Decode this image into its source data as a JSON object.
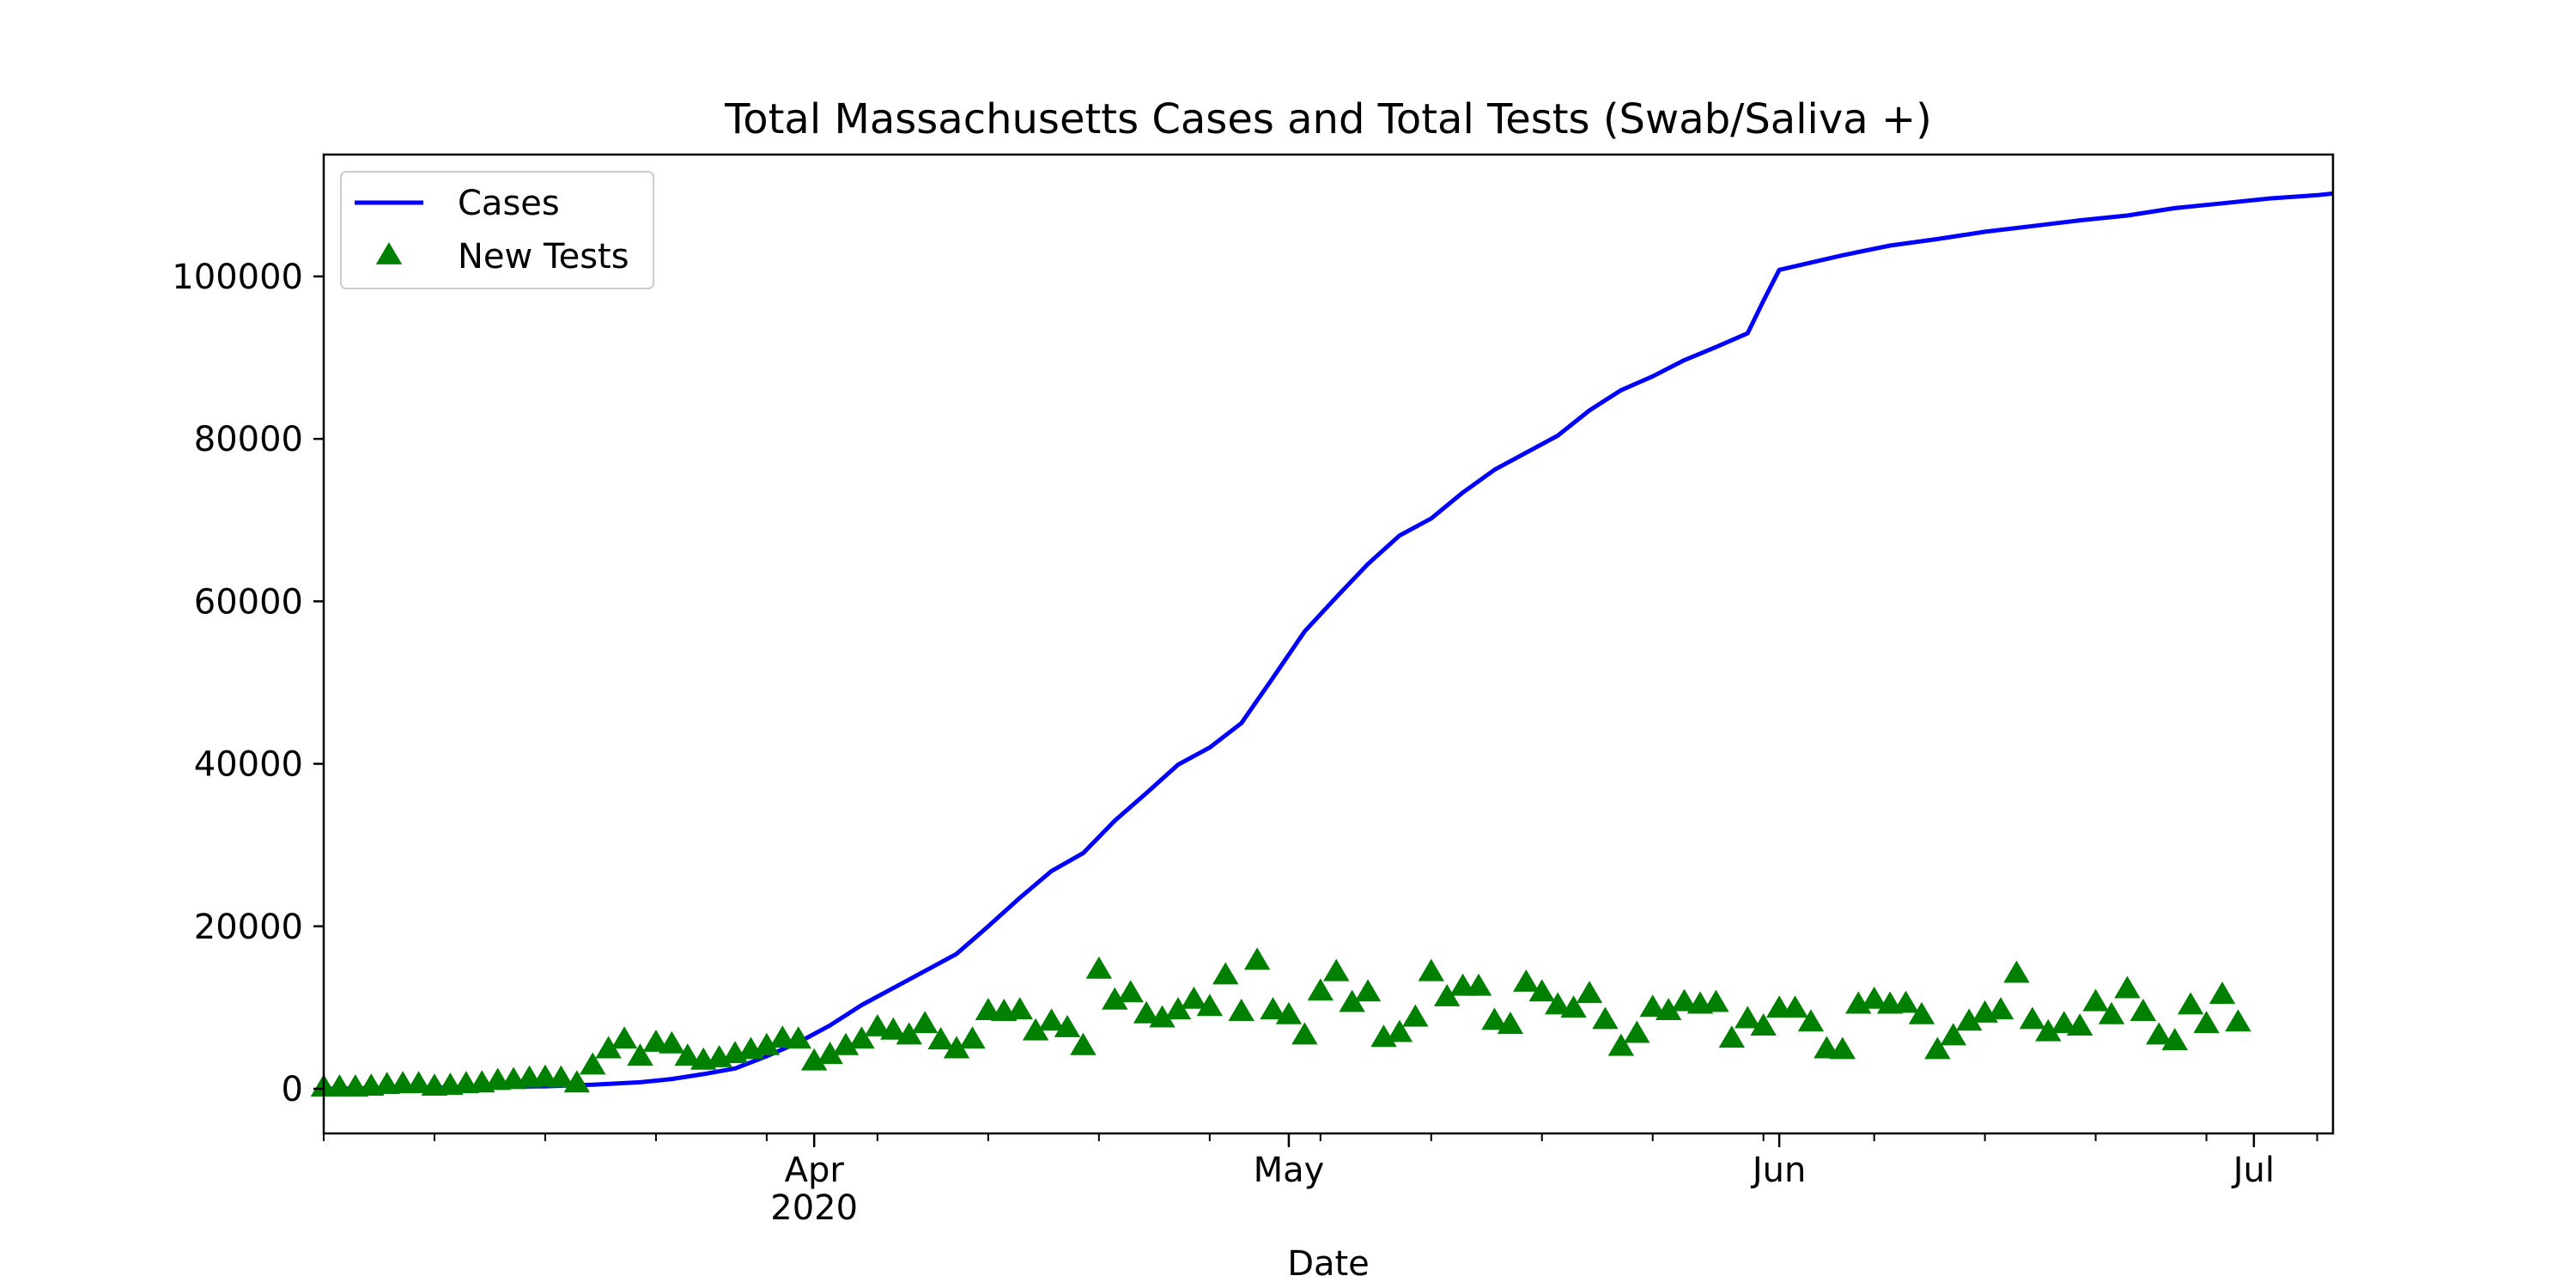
{
  "chart_data": {
    "type": "line",
    "title": "Total Massachusetts Cases and Total Tests (Swab/Saliva +)",
    "xlabel": "Date",
    "ylabel": "",
    "x_range": [
      "2020-03-01",
      "2020-07-06"
    ],
    "ylim": [
      -5500,
      115000
    ],
    "y_ticks": [
      0,
      20000,
      40000,
      60000,
      80000,
      100000
    ],
    "x_ticks": [
      {
        "date": "2020-04-01",
        "label": "Apr",
        "sublabel": "2020"
      },
      {
        "date": "2020-05-01",
        "label": "May",
        "sublabel": ""
      },
      {
        "date": "2020-06-01",
        "label": "Jun",
        "sublabel": ""
      },
      {
        "date": "2020-07-01",
        "label": "Jul",
        "sublabel": ""
      }
    ],
    "grid": false,
    "legend": {
      "position": "top-left",
      "entries": [
        "Cases",
        "New Tests"
      ]
    },
    "series": [
      {
        "name": "Cases",
        "kind": "line",
        "color": "#0000ff",
        "points": [
          [
            "2020-03-01",
            0
          ],
          [
            "2020-03-05",
            100
          ],
          [
            "2020-03-10",
            200
          ],
          [
            "2020-03-15",
            300
          ],
          [
            "2020-03-18",
            500
          ],
          [
            "2020-03-21",
            800
          ],
          [
            "2020-03-23",
            1200
          ],
          [
            "2020-03-25",
            1800
          ],
          [
            "2020-03-27",
            2500
          ],
          [
            "2020-03-29",
            4000
          ],
          [
            "2020-03-31",
            5700
          ],
          [
            "2020-04-02",
            7800
          ],
          [
            "2020-04-04",
            10300
          ],
          [
            "2020-04-06",
            12400
          ],
          [
            "2020-04-08",
            14500
          ],
          [
            "2020-04-10",
            16600
          ],
          [
            "2020-04-12",
            20000
          ],
          [
            "2020-04-14",
            23500
          ],
          [
            "2020-04-16",
            26800
          ],
          [
            "2020-04-18",
            29000
          ],
          [
            "2020-04-20",
            33000
          ],
          [
            "2020-04-22",
            36400
          ],
          [
            "2020-04-24",
            39900
          ],
          [
            "2020-04-26",
            42000
          ],
          [
            "2020-04-28",
            45000
          ],
          [
            "2020-04-30",
            50600
          ],
          [
            "2020-05-02",
            56300
          ],
          [
            "2020-05-04",
            60500
          ],
          [
            "2020-05-06",
            64600
          ],
          [
            "2020-05-08",
            68100
          ],
          [
            "2020-05-10",
            70200
          ],
          [
            "2020-05-12",
            73400
          ],
          [
            "2020-05-14",
            76200
          ],
          [
            "2020-05-16",
            78300
          ],
          [
            "2020-05-18",
            80400
          ],
          [
            "2020-05-20",
            83500
          ],
          [
            "2020-05-22",
            86000
          ],
          [
            "2020-05-24",
            87700
          ],
          [
            "2020-05-26",
            89700
          ],
          [
            "2020-05-28",
            91300
          ],
          [
            "2020-05-30",
            93000
          ],
          [
            "2020-05-31",
            97000
          ],
          [
            "2020-06-01",
            100800
          ],
          [
            "2020-06-03",
            101700
          ],
          [
            "2020-06-05",
            102600
          ],
          [
            "2020-06-08",
            103800
          ],
          [
            "2020-06-11",
            104600
          ],
          [
            "2020-06-14",
            105500
          ],
          [
            "2020-06-17",
            106200
          ],
          [
            "2020-06-20",
            106900
          ],
          [
            "2020-06-23",
            107500
          ],
          [
            "2020-06-26",
            108400
          ],
          [
            "2020-06-29",
            109000
          ],
          [
            "2020-07-02",
            109600
          ],
          [
            "2020-07-05",
            110000
          ],
          [
            "2020-07-06",
            110200
          ]
        ]
      },
      {
        "name": "New Tests",
        "kind": "scatter",
        "marker": "triangle",
        "color": "#008000",
        "points": [
          [
            "2020-03-01",
            100
          ],
          [
            "2020-03-02",
            100
          ],
          [
            "2020-03-03",
            100
          ],
          [
            "2020-03-04",
            200
          ],
          [
            "2020-03-05",
            400
          ],
          [
            "2020-03-06",
            500
          ],
          [
            "2020-03-07",
            500
          ],
          [
            "2020-03-08",
            200
          ],
          [
            "2020-03-09",
            300
          ],
          [
            "2020-03-10",
            500
          ],
          [
            "2020-03-11",
            600
          ],
          [
            "2020-03-12",
            900
          ],
          [
            "2020-03-13",
            1000
          ],
          [
            "2020-03-14",
            1200
          ],
          [
            "2020-03-15",
            1300
          ],
          [
            "2020-03-16",
            1200
          ],
          [
            "2020-03-17",
            600
          ],
          [
            "2020-03-18",
            2800
          ],
          [
            "2020-03-19",
            4800
          ],
          [
            "2020-03-20",
            6000
          ],
          [
            "2020-03-21",
            3900
          ],
          [
            "2020-03-22",
            5600
          ],
          [
            "2020-03-23",
            5400
          ],
          [
            "2020-03-24",
            3900
          ],
          [
            "2020-03-25",
            3400
          ],
          [
            "2020-03-26",
            3700
          ],
          [
            "2020-03-27",
            4200
          ],
          [
            "2020-03-28",
            4700
          ],
          [
            "2020-03-29",
            5200
          ],
          [
            "2020-03-30",
            6100
          ],
          [
            "2020-03-31",
            6000
          ],
          [
            "2020-04-01",
            3300
          ],
          [
            "2020-04-02",
            4100
          ],
          [
            "2020-04-03",
            5200
          ],
          [
            "2020-04-04",
            6000
          ],
          [
            "2020-04-05",
            7500
          ],
          [
            "2020-04-06",
            7100
          ],
          [
            "2020-04-07",
            6500
          ],
          [
            "2020-04-08",
            7900
          ],
          [
            "2020-04-09",
            5900
          ],
          [
            "2020-04-10",
            4800
          ],
          [
            "2020-04-11",
            6000
          ],
          [
            "2020-04-12",
            9500
          ],
          [
            "2020-04-13",
            9400
          ],
          [
            "2020-04-14",
            9600
          ],
          [
            "2020-04-15",
            7000
          ],
          [
            "2020-04-16",
            8200
          ],
          [
            "2020-04-17",
            7400
          ],
          [
            "2020-04-18",
            5200
          ],
          [
            "2020-04-19",
            14600
          ],
          [
            "2020-04-20",
            10800
          ],
          [
            "2020-04-21",
            11700
          ],
          [
            "2020-04-22",
            9100
          ],
          [
            "2020-04-23",
            8600
          ],
          [
            "2020-04-24",
            9600
          ],
          [
            "2020-04-25",
            10900
          ],
          [
            "2020-04-26",
            10000
          ],
          [
            "2020-04-27",
            13900
          ],
          [
            "2020-04-28",
            9400
          ],
          [
            "2020-04-29",
            15700
          ],
          [
            "2020-04-30",
            9600
          ],
          [
            "2020-05-01",
            9000
          ],
          [
            "2020-05-02",
            6500
          ],
          [
            "2020-05-03",
            11900
          ],
          [
            "2020-05-04",
            14300
          ],
          [
            "2020-05-05",
            10500
          ],
          [
            "2020-05-06",
            11800
          ],
          [
            "2020-05-07",
            6200
          ],
          [
            "2020-05-08",
            6800
          ],
          [
            "2020-05-09",
            8700
          ],
          [
            "2020-05-10",
            14300
          ],
          [
            "2020-05-11",
            11200
          ],
          [
            "2020-05-12",
            12500
          ],
          [
            "2020-05-13",
            12500
          ],
          [
            "2020-05-14",
            8300
          ],
          [
            "2020-05-15",
            7800
          ],
          [
            "2020-05-16",
            13000
          ],
          [
            "2020-05-17",
            11800
          ],
          [
            "2020-05-18",
            10200
          ],
          [
            "2020-05-19",
            9800
          ],
          [
            "2020-05-20",
            11600
          ],
          [
            "2020-05-21",
            8400
          ],
          [
            "2020-05-22",
            5100
          ],
          [
            "2020-05-23",
            6700
          ],
          [
            "2020-05-24",
            9900
          ],
          [
            "2020-05-25",
            9500
          ],
          [
            "2020-05-26",
            10600
          ],
          [
            "2020-05-27",
            10300
          ],
          [
            "2020-05-28",
            10500
          ],
          [
            "2020-05-29",
            6100
          ],
          [
            "2020-05-30",
            8500
          ],
          [
            "2020-05-31",
            7600
          ],
          [
            "2020-06-01",
            9800
          ],
          [
            "2020-06-02",
            9800
          ],
          [
            "2020-06-03",
            8100
          ],
          [
            "2020-06-04",
            4800
          ],
          [
            "2020-06-05",
            4700
          ],
          [
            "2020-06-06",
            10300
          ],
          [
            "2020-06-07",
            10900
          ],
          [
            "2020-06-08",
            10300
          ],
          [
            "2020-06-09",
            10400
          ],
          [
            "2020-06-10",
            9000
          ],
          [
            "2020-06-11",
            4700
          ],
          [
            "2020-06-12",
            6400
          ],
          [
            "2020-06-13",
            8200
          ],
          [
            "2020-06-14",
            9200
          ],
          [
            "2020-06-15",
            9600
          ],
          [
            "2020-06-16",
            14100
          ],
          [
            "2020-06-17",
            8400
          ],
          [
            "2020-06-18",
            6900
          ],
          [
            "2020-06-19",
            7900
          ],
          [
            "2020-06-20",
            7600
          ],
          [
            "2020-06-21",
            10600
          ],
          [
            "2020-06-22",
            9000
          ],
          [
            "2020-06-23",
            12200
          ],
          [
            "2020-06-24",
            9400
          ],
          [
            "2020-06-25",
            6500
          ],
          [
            "2020-06-26",
            5800
          ],
          [
            "2020-06-27",
            10200
          ],
          [
            "2020-06-28",
            7900
          ],
          [
            "2020-06-29",
            11500
          ],
          [
            "2020-06-30",
            8100
          ]
        ]
      }
    ]
  }
}
